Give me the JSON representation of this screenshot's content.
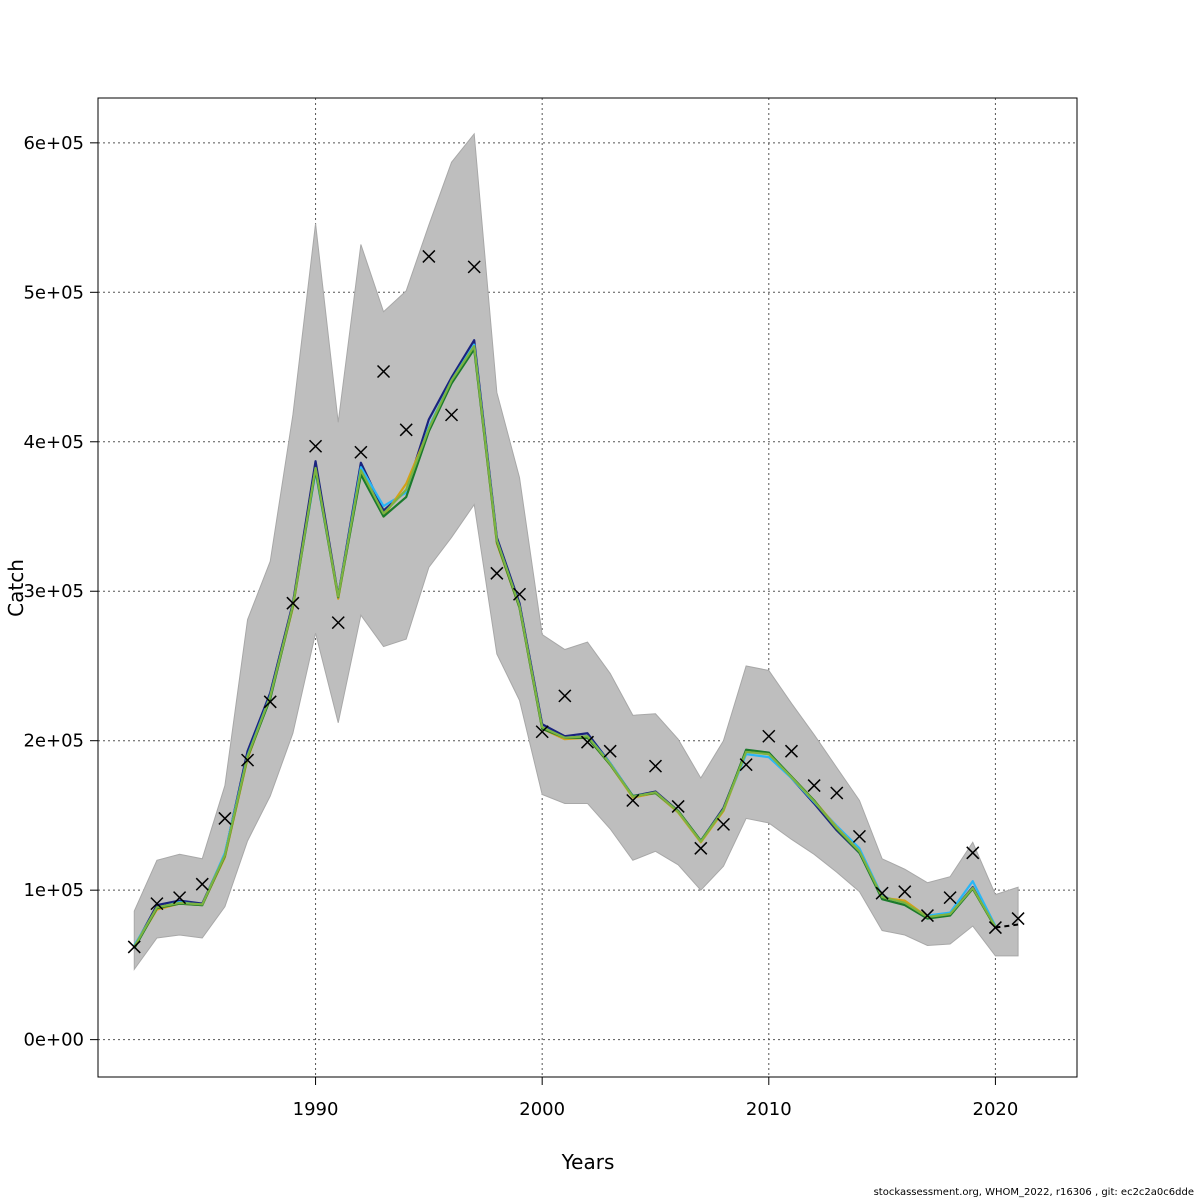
{
  "chart_data": {
    "type": "line",
    "title": "",
    "xlabel": "Years",
    "ylabel": "Catch",
    "xlim": [
      1980.4,
      2023.6
    ],
    "ylim": [
      -25000,
      630000
    ],
    "x_ticks": [
      1990,
      2000,
      2010,
      2020
    ],
    "y_ticks": [
      0,
      100000,
      200000,
      300000,
      400000,
      500000,
      600000
    ],
    "y_tick_labels": [
      "0e+00",
      "1e+05",
      "2e+05",
      "3e+05",
      "4e+05",
      "5e+05",
      "6e+05"
    ],
    "grid": true,
    "band_color": "#bebebe",
    "band": {
      "x": [
        1982,
        1983,
        1984,
        1985,
        1986,
        1987,
        1988,
        1989,
        1990,
        1991,
        1992,
        1993,
        1994,
        1995,
        1996,
        1997,
        1998,
        1999,
        2000,
        2001,
        2002,
        2003,
        2004,
        2005,
        2006,
        2007,
        2008,
        2009,
        2010,
        2011,
        2012,
        2013,
        2014,
        2015,
        2016,
        2017,
        2018,
        2019,
        2020,
        2021
      ],
      "upper": [
        86000,
        120000,
        124000,
        121000,
        170000,
        281000,
        320000,
        418000,
        546000,
        413000,
        532000,
        487000,
        501000,
        545000,
        587000,
        606000,
        433000,
        376000,
        271000,
        261000,
        266000,
        245000,
        217000,
        218000,
        201000,
        175000,
        200000,
        250000,
        247000,
        225000,
        204000,
        182000,
        160000,
        121000,
        114000,
        105000,
        109000,
        132000,
        97000,
        102000
      ],
      "lower": [
        47000,
        68000,
        70000,
        68000,
        89000,
        133000,
        163000,
        205000,
        272000,
        212000,
        284000,
        263000,
        268000,
        316000,
        336000,
        358000,
        258000,
        227000,
        164000,
        158000,
        158000,
        141000,
        120000,
        126000,
        117000,
        100000,
        116000,
        148000,
        145000,
        134000,
        124000,
        112000,
        99000,
        73000,
        70000,
        63000,
        64000,
        76000,
        56000,
        56000
      ]
    },
    "series": [
      {
        "color": "#1a237e",
        "x": [
          1982,
          1983,
          1984,
          1985,
          1986,
          1987,
          1988,
          1989,
          1990,
          1991,
          1992,
          1993,
          1994,
          1995,
          1996,
          1997,
          1998,
          1999,
          2000,
          2001,
          2002,
          2003,
          2004,
          2005,
          2006,
          2007,
          2008,
          2009,
          2010,
          2011,
          2012,
          2013,
          2014,
          2015,
          2016,
          2017,
          2018,
          2019,
          2020
        ],
        "y": [
          62000,
          90000,
          93000,
          91000,
          124000,
          193000,
          232000,
          292000,
          387000,
          297000,
          386000,
          354000,
          367000,
          415000,
          443000,
          468000,
          336000,
          292000,
          211000,
          203000,
          205000,
          185000,
          163000,
          166000,
          153000,
          133000,
          155000,
          193000,
          192000,
          175000,
          158000,
          140000,
          125000,
          96000,
          91000,
          82000,
          84000,
          102000,
          75000
        ]
      },
      {
        "color": "#29b6f6",
        "x": [
          1982,
          1983,
          1984,
          1985,
          1986,
          1987,
          1988,
          1989,
          1990,
          1991,
          1992,
          1993,
          1994,
          1995,
          1996,
          1997,
          1998,
          1999,
          2000,
          2001,
          2002,
          2003,
          2004,
          2005,
          2006,
          2007,
          2008,
          2009,
          2010,
          2011,
          2012,
          2013,
          2014,
          2015,
          2016,
          2017,
          2018,
          2019,
          2020
        ],
        "y": [
          63000,
          88000,
          92000,
          90000,
          125000,
          190000,
          230000,
          290000,
          380000,
          296000,
          383000,
          357000,
          366000,
          410000,
          441000,
          465000,
          334000,
          290000,
          209000,
          202000,
          203000,
          185000,
          163000,
          165000,
          152000,
          133000,
          154000,
          191000,
          189000,
          175000,
          159000,
          143000,
          128000,
          96000,
          91000,
          83000,
          85000,
          106000,
          76000
        ]
      },
      {
        "color": "#d4a017",
        "x": [
          1982,
          1983,
          1984,
          1985,
          1986,
          1987,
          1988,
          1989,
          1990,
          1991,
          1992,
          1993,
          1994,
          1995,
          1996,
          1997,
          1998,
          1999,
          2000,
          2001,
          2002,
          2003,
          2004,
          2005,
          2006,
          2007,
          2008,
          2009,
          2010,
          2011,
          2012,
          2013,
          2014,
          2015,
          2016,
          2017,
          2018,
          2019,
          2020
        ],
        "y": [
          62000,
          87000,
          91000,
          90000,
          122000,
          188000,
          229000,
          289000,
          382000,
          295000,
          380000,
          350000,
          372000,
          408000,
          440000,
          463000,
          332000,
          289000,
          208000,
          201000,
          202000,
          184000,
          162000,
          165000,
          152000,
          132000,
          153000,
          193000,
          191000,
          176000,
          160000,
          142000,
          126000,
          95000,
          93000,
          82000,
          84000,
          101000,
          75000
        ]
      },
      {
        "color": "#1b7a2c",
        "x": [
          1982,
          1983,
          1984,
          1985,
          1986,
          1987,
          1988,
          1989,
          1990,
          1991,
          1992,
          1993,
          1994,
          1995,
          1996,
          1997,
          1998,
          1999,
          2000,
          2001,
          2002,
          2003,
          2004,
          2005,
          2006,
          2007,
          2008,
          2009,
          2010,
          2011,
          2012,
          2013,
          2014,
          2015,
          2016,
          2017,
          2018,
          2019,
          2020
        ],
        "y": [
          61000,
          88000,
          91000,
          90000,
          123000,
          189000,
          228000,
          290000,
          381000,
          296000,
          378000,
          350000,
          363000,
          407000,
          439000,
          462000,
          333000,
          289000,
          208000,
          202000,
          202000,
          184000,
          163000,
          165000,
          153000,
          133000,
          154000,
          194000,
          192000,
          176000,
          160000,
          141000,
          125000,
          94000,
          90000,
          81000,
          83000,
          101000,
          75000
        ]
      },
      {
        "color": "#7cb342",
        "x": [
          1982,
          1983,
          1984,
          1985,
          1986,
          1987,
          1988,
          1989,
          1990,
          1991,
          1992,
          1993,
          1994,
          1995,
          1996,
          1997,
          1998,
          1999,
          2000,
          2001,
          2002,
          2003,
          2004,
          2005,
          2006,
          2007,
          2008,
          2009,
          2010,
          2011,
          2012,
          2013,
          2014,
          2015,
          2016,
          2017,
          2018,
          2019,
          2020
        ],
        "y": [
          62000,
          88500,
          91500,
          90500,
          123500,
          189500,
          229500,
          290500,
          382500,
          296500,
          381000,
          352000,
          368000,
          409000,
          441000,
          464000,
          334000,
          290000,
          209000,
          202000,
          203000,
          184500,
          162500,
          165500,
          152500,
          132500,
          154000,
          192500,
          191000,
          175500,
          159500,
          141500,
          126000,
          95500,
          91500,
          82000,
          84000,
          101500,
          75500
        ]
      }
    ],
    "projection": {
      "color": "#000000",
      "style": "dashed",
      "x": [
        2020,
        2021
      ],
      "y": [
        75000,
        77000
      ]
    },
    "observed": {
      "marker": "x",
      "x": [
        1982,
        1983,
        1984,
        1985,
        1986,
        1987,
        1988,
        1989,
        1990,
        1991,
        1992,
        1993,
        1994,
        1995,
        1996,
        1997,
        1998,
        1999,
        2000,
        2001,
        2002,
        2003,
        2004,
        2005,
        2006,
        2007,
        2008,
        2009,
        2010,
        2011,
        2012,
        2013,
        2014,
        2015,
        2016,
        2017,
        2018,
        2019,
        2020,
        2021
      ],
      "y": [
        62000,
        91000,
        95000,
        104000,
        148000,
        187000,
        226000,
        292000,
        397000,
        279000,
        393000,
        447000,
        408000,
        524000,
        418000,
        517000,
        312000,
        298000,
        206000,
        230000,
        199000,
        193000,
        160000,
        183000,
        156000,
        128000,
        144000,
        184000,
        203000,
        193000,
        170000,
        165000,
        136000,
        98000,
        99000,
        83000,
        95000,
        125000,
        75000,
        81000
      ]
    }
  },
  "footer": {
    "text": "stockassessment.org, WHOM_2022, r16306 , git: ec2c2a0c6dde"
  }
}
